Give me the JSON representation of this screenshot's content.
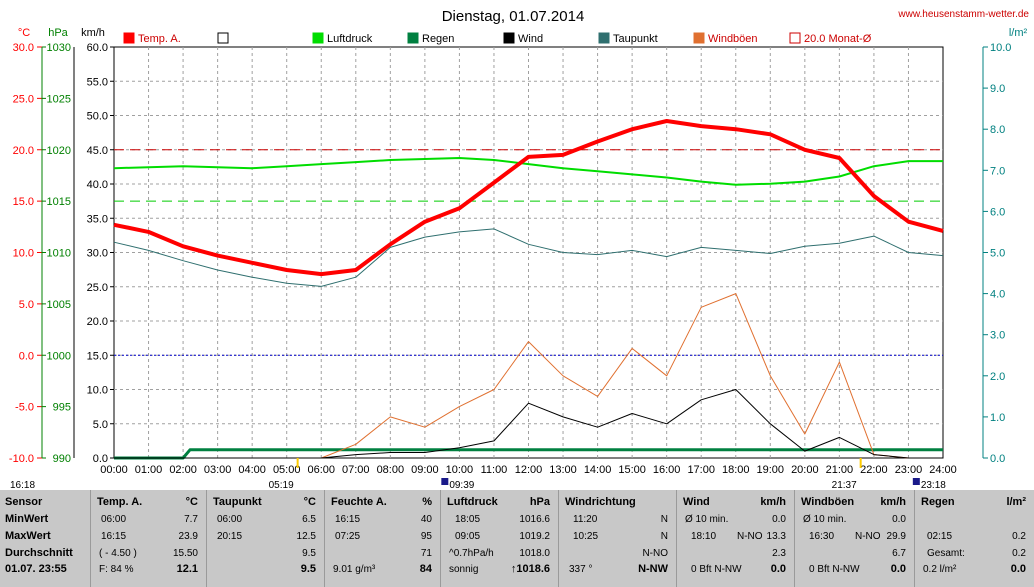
{
  "title": "Dienstag, 01.07.2014",
  "website": "www.heusenstamm-wetter.de",
  "colors": {
    "temp": "#ff0000",
    "pressure": "#00dd00",
    "rain": "#008040",
    "wind": "#000000",
    "dewpoint": "#2f6f6f",
    "gust": "#e07030",
    "monthavg": "#cc0000",
    "tempaxis": "#ff0000",
    "pressaxis": "#008000",
    "rainaxis": "#008080"
  },
  "axis_units": {
    "temp": "°C",
    "pressure": "hPa",
    "wind": "km/h",
    "rain": "l/m²"
  },
  "legend": [
    {
      "key": "temp",
      "label": "Temp. A.",
      "color": "#ff0000",
      "filled": true
    },
    {
      "key": "blank",
      "label": "",
      "color": "#000000",
      "filled": false
    },
    {
      "key": "pressure",
      "label": "Luftdruck",
      "color": "#00dd00",
      "filled": true
    },
    {
      "key": "rain",
      "label": "Regen",
      "color": "#008040",
      "filled": true
    },
    {
      "key": "wind",
      "label": "Wind",
      "color": "#000000",
      "filled": true
    },
    {
      "key": "dewpoint",
      "label": "Taupunkt",
      "color": "#2f6f6f",
      "filled": true
    },
    {
      "key": "gust",
      "label": "Windböen",
      "color": "#e07030",
      "filled": true
    },
    {
      "key": "monthavg",
      "label": "20.0 Monat-Ø",
      "color": "#cc0000",
      "filled": false
    }
  ],
  "sun": {
    "sunrise": "05:19",
    "sunset": "21:37",
    "moonrise": "16:18",
    "moon1": "09:39",
    "moon2": "23:18"
  },
  "chart_data": {
    "type": "line",
    "x_ticks": [
      "00:00",
      "01:00",
      "02:00",
      "03:00",
      "04:00",
      "05:00",
      "06:00",
      "07:00",
      "08:00",
      "09:00",
      "10:00",
      "11:00",
      "12:00",
      "13:00",
      "14:00",
      "15:00",
      "16:00",
      "17:00",
      "18:00",
      "19:00",
      "20:00",
      "21:00",
      "22:00",
      "23:00",
      "24:00"
    ],
    "temp_ticks": [
      "30.0",
      "25.0",
      "20.0",
      "15.0",
      "10.0",
      "5.0",
      "0.0",
      "-5.0",
      "-10.0"
    ],
    "pressure_ticks": [
      "1030",
      "1025",
      "1020",
      "1015",
      "1010",
      "1005",
      "1000",
      "995",
      "990"
    ],
    "wind_ticks": [
      "60.0",
      "55.0",
      "50.0",
      "45.0",
      "40.0",
      "35.0",
      "30.0",
      "25.0",
      "20.0",
      "15.0",
      "10.0",
      "5.0",
      "0.0"
    ],
    "rain_ticks": [
      "10.0",
      "9.0",
      "8.0",
      "7.0",
      "6.0",
      "5.0",
      "4.0",
      "3.0",
      "2.0",
      "1.0",
      "0.0"
    ],
    "temp_range": [
      -10,
      30
    ],
    "pressure_range": [
      990,
      1030
    ],
    "wind_range": [
      0,
      60
    ],
    "rain_range": [
      0,
      10
    ],
    "reference_lines": {
      "month_avg_temp": 20.0,
      "pressure_ref": 1015,
      "zero_temp": 0.0
    },
    "series": [
      {
        "name": "Temp. A.",
        "unit": "°C",
        "x": [
          0,
          1,
          2,
          3,
          4,
          5,
          6,
          7,
          8,
          9,
          10,
          11,
          12,
          13,
          14,
          15,
          16,
          17,
          18,
          19,
          20,
          21,
          22,
          23,
          24
        ],
        "values": [
          12.7,
          12.0,
          10.6,
          9.7,
          9.0,
          8.3,
          7.9,
          8.3,
          10.8,
          13.0,
          14.3,
          16.8,
          19.3,
          19.5,
          20.8,
          22.0,
          22.8,
          22.3,
          22.0,
          21.5,
          20.0,
          19.2,
          15.5,
          13.0,
          12.1
        ]
      },
      {
        "name": "Luftdruck",
        "unit": "hPa",
        "x": [
          0,
          1,
          2,
          3,
          4,
          5,
          6,
          7,
          8,
          9,
          10,
          11,
          12,
          13,
          14,
          15,
          16,
          17,
          18,
          19,
          20,
          21,
          22,
          23,
          24
        ],
        "values": [
          1018.2,
          1018.3,
          1018.4,
          1018.3,
          1018.2,
          1018.4,
          1018.6,
          1018.8,
          1019.0,
          1019.1,
          1019.2,
          1019.0,
          1018.6,
          1018.2,
          1017.9,
          1017.6,
          1017.3,
          1016.9,
          1016.6,
          1016.7,
          1016.9,
          1017.4,
          1018.4,
          1018.9,
          1018.9
        ]
      },
      {
        "name": "Taupunkt",
        "unit": "°C",
        "x": [
          0,
          1,
          2,
          3,
          4,
          5,
          6,
          7,
          8,
          9,
          10,
          11,
          12,
          13,
          14,
          15,
          16,
          17,
          18,
          19,
          20,
          21,
          22,
          23,
          24
        ],
        "values": [
          11.0,
          10.2,
          9.2,
          8.3,
          7.6,
          7.0,
          6.7,
          7.6,
          10.5,
          11.5,
          12.0,
          12.3,
          10.8,
          10.0,
          9.8,
          10.2,
          9.6,
          10.5,
          10.2,
          9.9,
          10.6,
          10.9,
          11.6,
          10.0,
          9.7
        ]
      },
      {
        "name": "Wind",
        "unit": "km/h",
        "x": [
          0,
          1,
          2,
          3,
          4,
          5,
          6,
          7,
          8,
          9,
          10,
          11,
          12,
          13,
          14,
          15,
          16,
          17,
          18,
          19,
          20,
          21,
          22,
          23,
          24
        ],
        "values": [
          0,
          0,
          0,
          0,
          0,
          0,
          0,
          0.5,
          0.8,
          0.8,
          1.5,
          2.5,
          8.0,
          6.0,
          4.5,
          6.5,
          5.0,
          8.5,
          10.0,
          5.0,
          1.0,
          3.0,
          0.5,
          0,
          0
        ]
      },
      {
        "name": "Windböen",
        "unit": "km/h",
        "x": [
          0,
          1,
          2,
          3,
          4,
          5,
          6,
          7,
          8,
          9,
          10,
          11,
          12,
          13,
          14,
          15,
          16,
          17,
          18,
          19,
          20,
          21,
          22,
          23,
          24
        ],
        "values": [
          0,
          0,
          0,
          0,
          0,
          0,
          0,
          2.0,
          6.0,
          4.5,
          7.5,
          10.0,
          17.0,
          12.0,
          9.0,
          16.0,
          12.0,
          22.0,
          24.0,
          12.0,
          3.5,
          14.0,
          0.5,
          0,
          0
        ]
      },
      {
        "name": "Regen",
        "unit": "l/m²",
        "x": [
          0,
          1,
          2,
          2.2,
          24
        ],
        "values": [
          0,
          0,
          0,
          0.2,
          0.2
        ]
      }
    ]
  },
  "table": {
    "sensor": {
      "header": "Sensor",
      "min": "MinWert",
      "max": "MaxWert",
      "avg": "Durchschnitt",
      "now": "01.07. 23:55"
    },
    "temp": {
      "header": "Temp. A.",
      "unit": "°C",
      "min_time": "06:00",
      "min": "7.7",
      "max_time": "16:15",
      "max": "23.9",
      "avg_note": "( - 4.50 )",
      "avg": "15.50",
      "now_note": "F: 84 %",
      "now": "12.1"
    },
    "dew": {
      "header": "Taupunkt",
      "unit": "°C",
      "min_time": "06:00",
      "min": "6.5",
      "max_time": "20:15",
      "max": "12.5",
      "avg": "9.5",
      "now": "9.5"
    },
    "hum": {
      "header": "Feuchte A.",
      "unit": "%",
      "min_time": "16:15",
      "min": "40",
      "max_time": "07:25",
      "max": "95",
      "avg": "71",
      "now_note": "9.01 g/m³",
      "now": "84"
    },
    "press": {
      "header": "Luftdruck",
      "unit": "hPa",
      "min_time": "18:05",
      "min": "1016.6",
      "max_time": "09:05",
      "max": "1019.2",
      "avg_note": "^0.7hPa/h",
      "avg": "1018.0",
      "now_note": "sonnig",
      "now": "↑1018.6"
    },
    "dir": {
      "header": "Windrichtung",
      "min_time": "11:20",
      "min": "N",
      "max_time": "10:25",
      "max": "N",
      "avg": "N-NO",
      "now_note": "337 °",
      "now": "N-NW"
    },
    "wind": {
      "header": "Wind",
      "unit": "km/h",
      "min_time": "Ø 10 min.",
      "min": "0.0",
      "max_time": "18:10",
      "max_dir": "N-NO",
      "max": "13.3",
      "avg": "2.3",
      "now_note": "0 Bft N-NW",
      "now": "0.0"
    },
    "gust": {
      "header": "Windböen",
      "unit": "km/h",
      "min_time": "Ø 10 min.",
      "min": "0.0",
      "max_time": "16:30",
      "max_dir": "N-NO",
      "max": "29.9",
      "avg": "6.7",
      "now_note": "0 Bft N-NW",
      "now": "0.0"
    },
    "rain": {
      "header": "Regen",
      "unit": "l/m²",
      "min_time": "02:15",
      "min": "0.2",
      "max_time": "Gesamt:",
      "max": "0.2",
      "now_note": "0.2 l/m²",
      "now": "0.0"
    }
  }
}
